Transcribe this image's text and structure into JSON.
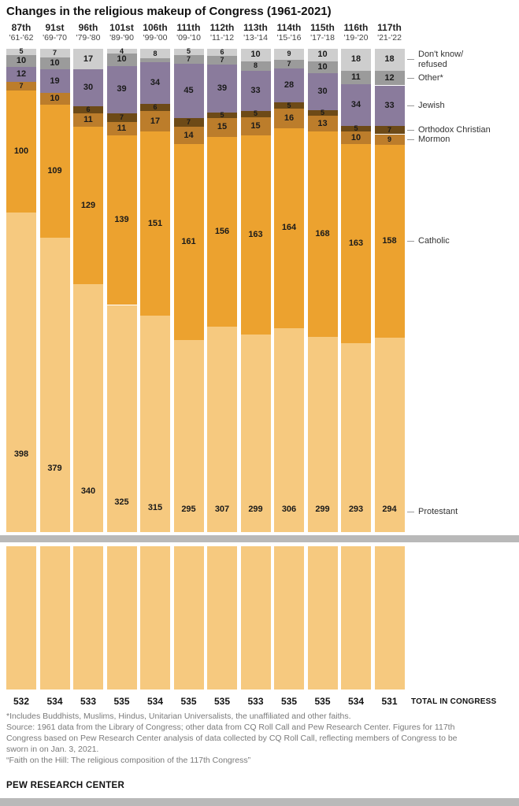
{
  "title": "Changes in the religious makeup of Congress (1961-2021)",
  "chart_data": {
    "type": "bar",
    "stacked": true,
    "units": "members of Congress",
    "categories": [
      {
        "congress": "87th",
        "years": "'61-'62"
      },
      {
        "congress": "91st",
        "years": "'69-'70"
      },
      {
        "congress": "96th",
        "years": "'79-'80"
      },
      {
        "congress": "101st",
        "years": "'89-'90"
      },
      {
        "congress": "106th",
        "years": "'99-'00"
      },
      {
        "congress": "111th",
        "years": "'09-'10"
      },
      {
        "congress": "112th",
        "years": "'11-'12"
      },
      {
        "congress": "113th",
        "years": "'13-'14"
      },
      {
        "congress": "114th",
        "years": "'15-'16"
      },
      {
        "congress": "115th",
        "years": "'17-'18"
      },
      {
        "congress": "116th",
        "years": "'19-'20"
      },
      {
        "congress": "117th",
        "years": "'21-'22"
      }
    ],
    "series": [
      {
        "name": "Don't know/refused",
        "color": "#cecece",
        "legend_lines": [
          "Don't know/",
          "refused"
        ],
        "values": [
          5,
          7,
          17,
          4,
          8,
          5,
          6,
          10,
          9,
          10,
          18,
          18
        ]
      },
      {
        "name": "Other*",
        "color": "#9b9b9b",
        "legend_lines": [
          "Other*"
        ],
        "values": [
          10,
          10,
          0,
          10,
          3,
          7,
          7,
          8,
          7,
          10,
          11,
          12
        ]
      },
      {
        "name": "Jewish",
        "color": "#8a7b9c",
        "legend_lines": [
          "Jewish"
        ],
        "values": [
          12,
          19,
          30,
          39,
          34,
          45,
          39,
          33,
          28,
          30,
          34,
          33
        ]
      },
      {
        "name": "Orthodox Christian",
        "color": "#6d4a17",
        "legend_lines": [
          "Orthodox Christian"
        ],
        "values": [
          0,
          0,
          6,
          7,
          6,
          7,
          5,
          5,
          5,
          5,
          5,
          7
        ]
      },
      {
        "name": "Mormon",
        "color": "#bc7d2b",
        "legend_lines": [
          "Mormon"
        ],
        "values": [
          7,
          10,
          11,
          11,
          17,
          14,
          15,
          15,
          16,
          13,
          10,
          9
        ]
      },
      {
        "name": "Catholic",
        "color": "#eca22f",
        "legend_lines": [
          "Catholic"
        ],
        "values": [
          100,
          109,
          129,
          139,
          151,
          161,
          156,
          163,
          164,
          168,
          163,
          158
        ]
      },
      {
        "name": "Protestant",
        "color": "#f6c97f",
        "legend_lines": [
          "Protestant"
        ],
        "values": [
          398,
          379,
          340,
          325,
          315,
          295,
          307,
          299,
          306,
          299,
          293,
          294
        ]
      }
    ],
    "totals": {
      "label": "TOTAL IN CONGRESS",
      "values": [
        532,
        534,
        533,
        535,
        534,
        535,
        535,
        533,
        535,
        535,
        534,
        531
      ]
    }
  },
  "footnotes": {
    "asterisk": "*Includes Buddhists, Muslims, Hindus, Unitarian Universalists, the unaffiliated and other faiths.",
    "source": "Source: 1961 data from the Library of Congress; other data from CQ Roll Call and Pew Research Center. Figures for 117th Congress based on Pew Research Center analysis of data collected by CQ Roll Call, reflecting members of Congress to be sworn in on Jan. 3, 2021.",
    "quote": "“Faith on the Hill: The religious composition of the 117th Congress”"
  },
  "source_org": "PEW RESEARCH CENTER"
}
